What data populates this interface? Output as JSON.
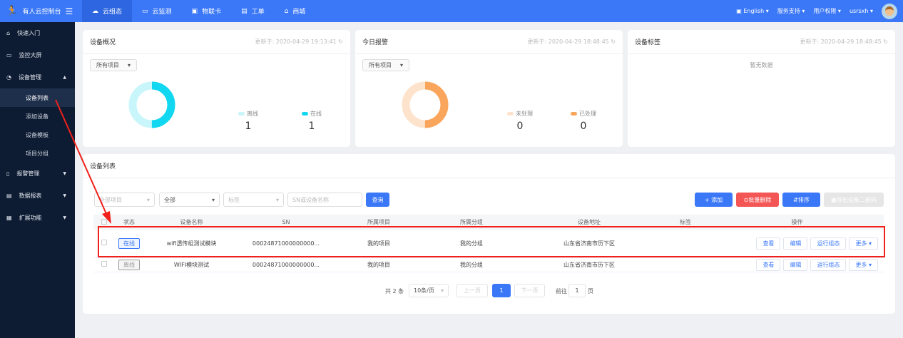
{
  "app": {
    "title": "有人云控制台"
  },
  "nav": [
    {
      "label": "云组态",
      "icon": "cloud-icon",
      "active": true
    },
    {
      "label": "云监测",
      "icon": "monitor-icon"
    },
    {
      "label": "物联卡",
      "icon": "sim-card-icon"
    },
    {
      "label": "工单",
      "icon": "ticket-icon"
    },
    {
      "label": "商城",
      "icon": "store-icon"
    }
  ],
  "header_right": {
    "language": "English",
    "support": "服务支持",
    "permissions": "用户权限",
    "user": "usrsxh"
  },
  "sidebar": {
    "items": [
      {
        "label": "快速入门",
        "icon": "home-icon"
      },
      {
        "label": "监控大屏",
        "icon": "monitor-icon"
      },
      {
        "label": "设备管理",
        "icon": "device-icon",
        "expanded": true,
        "children": [
          {
            "label": "设备列表",
            "active": true
          },
          {
            "label": "添加设备"
          },
          {
            "label": "设备模板"
          },
          {
            "label": "项目分组"
          }
        ]
      },
      {
        "label": "报警管理",
        "icon": "alarm-icon"
      },
      {
        "label": "数据报表",
        "icon": "report-icon"
      },
      {
        "label": "扩展功能",
        "icon": "extension-icon"
      }
    ]
  },
  "overview": {
    "title": "设备概况",
    "updated": "更新于: 2020-04-29 19:13:41",
    "select": "所有项目",
    "legend": [
      {
        "label": "离线",
        "value": "1",
        "color": "#c9f6fb"
      },
      {
        "label": "在线",
        "value": "1",
        "color": "#12d7f0"
      }
    ]
  },
  "alarms": {
    "title": "今日报警",
    "updated": "更新于: 2020-04-29 18:48:45",
    "select": "所有项目",
    "legend": [
      {
        "label": "未处理",
        "value": "0",
        "color": "#fde3cc"
      },
      {
        "label": "已处理",
        "value": "0",
        "color": "#f9a55c"
      }
    ]
  },
  "tags": {
    "title": "设备标签",
    "updated": "更新于: 2020-04-29 18:48:45",
    "empty": "暂无数据"
  },
  "device_list": {
    "title": "设备列表",
    "filters": {
      "project": "全部项目",
      "status": "全部",
      "tag": "标签",
      "search_placeholder": "SN或设备名称",
      "query": "查询"
    },
    "actions": {
      "add": "+ 添加",
      "batch_delete": "批量删除",
      "sort": "排序",
      "export": "导出设备二维码"
    },
    "columns": [
      "状态",
      "设备名称",
      "SN",
      "所属项目",
      "所属分组",
      "设备地址",
      "标签",
      "操作"
    ],
    "rows": [
      {
        "status": "在线",
        "online": true,
        "name": "wifi透传组测试模块",
        "sn": "00024871000000000...",
        "project": "我的项目",
        "group": "我的分组",
        "address": "山东省济南市历下区",
        "tag": ""
      },
      {
        "status": "离线",
        "online": false,
        "name": "WIFI模块测试",
        "sn": "00024871000000000...",
        "project": "我的项目",
        "group": "我的分组",
        "address": "山东省济南市历下区",
        "tag": ""
      }
    ],
    "row_actions": {
      "view": "查看",
      "edit": "编辑",
      "run": "运行组态",
      "more": "更多"
    },
    "pagination": {
      "total": "共 2 条",
      "page_size": "10条/页",
      "prev": "上一页",
      "current": "1",
      "next": "下一页",
      "goto": "前往",
      "goto_value": "1",
      "page_suffix": "页"
    }
  }
}
